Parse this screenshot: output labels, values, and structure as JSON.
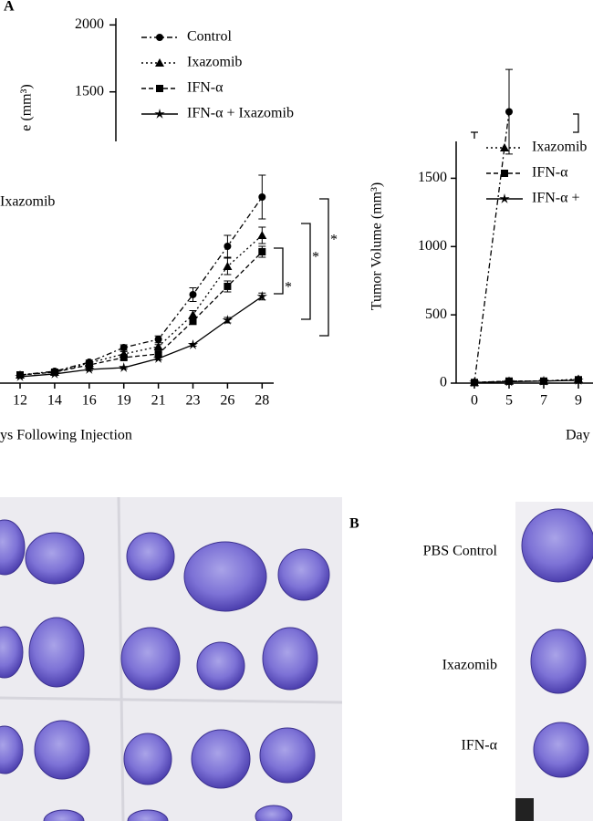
{
  "chart_data": [
    {
      "type": "line",
      "panel_label": "A",
      "ylabel": "e (mm³)",
      "ylim": [
        1130,
        2050
      ],
      "yticks": [
        1500,
        2000
      ],
      "legend": [
        "Control",
        "Ixazomib",
        "IFN-α",
        "IFN-α + Ixazomib"
      ]
    },
    {
      "type": "line",
      "legend": [
        "Ixazomib"
      ],
      "xlabel": "ys Following Injection",
      "categories": [
        "12",
        "14",
        "16",
        "19",
        "21",
        "23",
        "26",
        "28"
      ],
      "ylim": [
        0,
        1800
      ],
      "series": [
        {
          "name": "Control",
          "color": "#000000",
          "values": [
            60,
            87,
            153,
            260,
            320,
            647,
            1000,
            1360
          ],
          "errors": [
            10,
            10,
            15,
            20,
            25,
            50,
            80,
            160
          ]
        },
        {
          "name": "Ixazomib",
          "color": "#000000",
          "values": [
            60,
            80,
            147,
            213,
            267,
            500,
            853,
            1080
          ],
          "errors": [
            8,
            8,
            12,
            18,
            15,
            30,
            60,
            60
          ]
        },
        {
          "name": "IFN-α",
          "color": "#000000",
          "values": [
            60,
            80,
            133,
            187,
            213,
            453,
            707,
            960
          ],
          "errors": [
            8,
            8,
            10,
            15,
            12,
            25,
            40,
            40
          ]
        },
        {
          "name": "IFN-α + Ixazomib",
          "color": "#000000",
          "values": [
            47,
            67,
            100,
            113,
            180,
            280,
            460,
            633
          ],
          "errors": [
            5,
            5,
            8,
            8,
            10,
            10,
            20,
            25
          ]
        }
      ],
      "annotations": [
        "*",
        "*",
        "*"
      ]
    },
    {
      "type": "line",
      "ylabel": "Tumor Volume (mm³)",
      "xlabel": "Day",
      "categories": [
        "0",
        "5",
        "7",
        "9"
      ],
      "ylim": [
        0,
        1770
      ],
      "yticks": [
        0,
        500,
        1000,
        1500
      ],
      "series": [
        {
          "color": "#000000",
          "values": [
            5,
            1987,
            null,
            null
          ],
          "errors": [
            0,
            310,
            0,
            0
          ]
        },
        {
          "name": "Ixazomib",
          "color": "#000000",
          "values": [
            5,
            15,
            15,
            30
          ]
        },
        {
          "name": "IFN-α",
          "color": "#000000",
          "values": [
            5,
            15,
            15,
            25
          ]
        },
        {
          "name": "IFN-α + ",
          "color": "#000000",
          "values": [
            5,
            10,
            15,
            20
          ]
        }
      ]
    }
  ],
  "photo_panel": {
    "label": "B",
    "rows": [
      "PBS Control",
      "Ixazomib",
      "IFN-α"
    ]
  }
}
